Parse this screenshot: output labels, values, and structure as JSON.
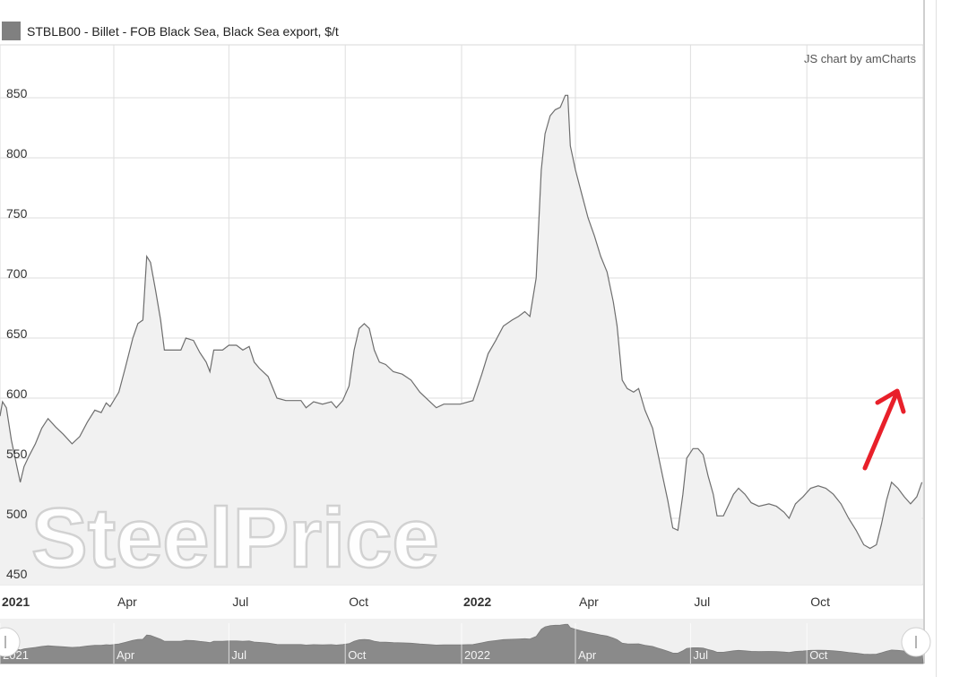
{
  "legend": {
    "label": "STBLB00 - Billet - FOB Black Sea, Black Sea export, $/t",
    "swatch_color": "#808080"
  },
  "credit": "JS chart by amCharts",
  "watermark": "SteelPrice",
  "annotation": {
    "type": "arrow",
    "color": "#e8202a",
    "icon": "red-arrow-icon"
  },
  "scrollbar": {
    "labels": [
      "2021",
      "Apr",
      "Jul",
      "Oct",
      "2022",
      "Apr",
      "Jul",
      "Oct"
    ]
  },
  "chart_data": {
    "type": "area",
    "title": "",
    "xlabel": "",
    "ylabel": "",
    "ylim": [
      450,
      900
    ],
    "xlim": [
      "2021-01-01",
      "2022-12-31"
    ],
    "yticks": [
      450,
      500,
      550,
      600,
      650,
      700,
      750,
      800,
      850
    ],
    "xticks": [
      {
        "date": "2021-01-01",
        "label": "2021",
        "bold": true
      },
      {
        "date": "2021-04-01",
        "label": "Apr",
        "bold": false
      },
      {
        "date": "2021-07-01",
        "label": "Jul",
        "bold": false
      },
      {
        "date": "2021-10-01",
        "label": "Oct",
        "bold": false
      },
      {
        "date": "2022-01-01",
        "label": "2022",
        "bold": true
      },
      {
        "date": "2022-04-01",
        "label": "Apr",
        "bold": false
      },
      {
        "date": "2022-07-01",
        "label": "Jul",
        "bold": false
      },
      {
        "date": "2022-10-01",
        "label": "Oct",
        "bold": false
      }
    ],
    "grid": true,
    "line_color": "#6e6e6e",
    "fill_color": "#f1f1f1",
    "series": [
      {
        "name": "STBLB00 - Billet - FOB Black Sea, Black Sea export, $/t",
        "points": [
          [
            "2021-01-01",
            585
          ],
          [
            "2021-01-03",
            597
          ],
          [
            "2021-01-06",
            592
          ],
          [
            "2021-01-10",
            565
          ],
          [
            "2021-01-14",
            545
          ],
          [
            "2021-01-17",
            530
          ],
          [
            "2021-01-20",
            543
          ],
          [
            "2021-01-24",
            552
          ],
          [
            "2021-01-29",
            562
          ],
          [
            "2021-02-03",
            575
          ],
          [
            "2021-02-08",
            583
          ],
          [
            "2021-02-14",
            576
          ],
          [
            "2021-02-20",
            570
          ],
          [
            "2021-02-27",
            562
          ],
          [
            "2021-03-05",
            568
          ],
          [
            "2021-03-11",
            580
          ],
          [
            "2021-03-17",
            590
          ],
          [
            "2021-03-22",
            588
          ],
          [
            "2021-03-26",
            596
          ],
          [
            "2021-03-29",
            593
          ],
          [
            "2021-04-05",
            605
          ],
          [
            "2021-04-10",
            625
          ],
          [
            "2021-04-16",
            650
          ],
          [
            "2021-04-20",
            662
          ],
          [
            "2021-04-24",
            665
          ],
          [
            "2021-04-27",
            718
          ],
          [
            "2021-04-30",
            713
          ],
          [
            "2021-05-04",
            690
          ],
          [
            "2021-05-08",
            665
          ],
          [
            "2021-05-11",
            640
          ],
          [
            "2021-05-18",
            640
          ],
          [
            "2021-05-24",
            640
          ],
          [
            "2021-05-28",
            650
          ],
          [
            "2021-06-03",
            648
          ],
          [
            "2021-06-08",
            638
          ],
          [
            "2021-06-13",
            630
          ],
          [
            "2021-06-16",
            622
          ],
          [
            "2021-06-19",
            640
          ],
          [
            "2021-06-26",
            640
          ],
          [
            "2021-07-01",
            644
          ],
          [
            "2021-07-07",
            644
          ],
          [
            "2021-07-12",
            640
          ],
          [
            "2021-07-17",
            643
          ],
          [
            "2021-07-21",
            630
          ],
          [
            "2021-07-25",
            625
          ],
          [
            "2021-08-01",
            618
          ],
          [
            "2021-08-08",
            600
          ],
          [
            "2021-08-15",
            598
          ],
          [
            "2021-08-22",
            598
          ],
          [
            "2021-08-27",
            598
          ],
          [
            "2021-08-31",
            592
          ],
          [
            "2021-09-06",
            597
          ],
          [
            "2021-09-13",
            595
          ],
          [
            "2021-09-20",
            597
          ],
          [
            "2021-09-24",
            592
          ],
          [
            "2021-09-29",
            598
          ],
          [
            "2021-10-04",
            610
          ],
          [
            "2021-10-08",
            640
          ],
          [
            "2021-10-12",
            658
          ],
          [
            "2021-10-16",
            662
          ],
          [
            "2021-10-20",
            658
          ],
          [
            "2021-10-24",
            640
          ],
          [
            "2021-10-28",
            630
          ],
          [
            "2021-11-02",
            628
          ],
          [
            "2021-11-08",
            622
          ],
          [
            "2021-11-15",
            620
          ],
          [
            "2021-11-22",
            615
          ],
          [
            "2021-11-29",
            605
          ],
          [
            "2021-12-06",
            598
          ],
          [
            "2021-12-12",
            592
          ],
          [
            "2021-12-18",
            595
          ],
          [
            "2021-12-31",
            595
          ],
          [
            "2022-01-10",
            598
          ],
          [
            "2022-01-17",
            620
          ],
          [
            "2022-01-22",
            637
          ],
          [
            "2022-01-28",
            648
          ],
          [
            "2022-02-03",
            660
          ],
          [
            "2022-02-10",
            665
          ],
          [
            "2022-02-15",
            668
          ],
          [
            "2022-02-20",
            672
          ],
          [
            "2022-02-24",
            668
          ],
          [
            "2022-03-01",
            700
          ],
          [
            "2022-03-05",
            790
          ],
          [
            "2022-03-08",
            820
          ],
          [
            "2022-03-12",
            835
          ],
          [
            "2022-03-16",
            840
          ],
          [
            "2022-03-20",
            842
          ],
          [
            "2022-03-24",
            852
          ],
          [
            "2022-03-26",
            852
          ],
          [
            "2022-03-28",
            810
          ],
          [
            "2022-04-01",
            790
          ],
          [
            "2022-04-06",
            770
          ],
          [
            "2022-04-11",
            750
          ],
          [
            "2022-04-16",
            735
          ],
          [
            "2022-04-21",
            718
          ],
          [
            "2022-04-26",
            705
          ],
          [
            "2022-05-01",
            680
          ],
          [
            "2022-05-04",
            660
          ],
          [
            "2022-05-08",
            615
          ],
          [
            "2022-05-12",
            608
          ],
          [
            "2022-05-17",
            605
          ],
          [
            "2022-05-21",
            608
          ],
          [
            "2022-05-26",
            590
          ],
          [
            "2022-06-01",
            575
          ],
          [
            "2022-06-05",
            555
          ],
          [
            "2022-06-09",
            535
          ],
          [
            "2022-06-13",
            515
          ],
          [
            "2022-06-17",
            492
          ],
          [
            "2022-06-21",
            490
          ],
          [
            "2022-06-25",
            520
          ],
          [
            "2022-06-28",
            550
          ],
          [
            "2022-07-03",
            558
          ],
          [
            "2022-07-07",
            558
          ],
          [
            "2022-07-11",
            553
          ],
          [
            "2022-07-15",
            535
          ],
          [
            "2022-07-19",
            520
          ],
          [
            "2022-07-22",
            502
          ],
          [
            "2022-07-27",
            502
          ],
          [
            "2022-08-01",
            513
          ],
          [
            "2022-08-04",
            520
          ],
          [
            "2022-08-08",
            525
          ],
          [
            "2022-08-13",
            520
          ],
          [
            "2022-08-18",
            513
          ],
          [
            "2022-08-24",
            510
          ],
          [
            "2022-09-01",
            512
          ],
          [
            "2022-09-07",
            510
          ],
          [
            "2022-09-13",
            505
          ],
          [
            "2022-09-17",
            500
          ],
          [
            "2022-09-22",
            512
          ],
          [
            "2022-09-28",
            518
          ],
          [
            "2022-10-04",
            525
          ],
          [
            "2022-10-10",
            527
          ],
          [
            "2022-10-16",
            525
          ],
          [
            "2022-10-22",
            520
          ],
          [
            "2022-10-28",
            512
          ],
          [
            "2022-11-03",
            500
          ],
          [
            "2022-11-09",
            490
          ],
          [
            "2022-11-15",
            478
          ],
          [
            "2022-11-20",
            475
          ],
          [
            "2022-11-25",
            478
          ],
          [
            "2022-11-29",
            495
          ],
          [
            "2022-12-03",
            515
          ],
          [
            "2022-12-07",
            530
          ],
          [
            "2022-12-12",
            525
          ],
          [
            "2022-12-17",
            518
          ],
          [
            "2022-12-22",
            512
          ],
          [
            "2022-12-27",
            518
          ],
          [
            "2022-12-31",
            530
          ]
        ]
      }
    ]
  }
}
